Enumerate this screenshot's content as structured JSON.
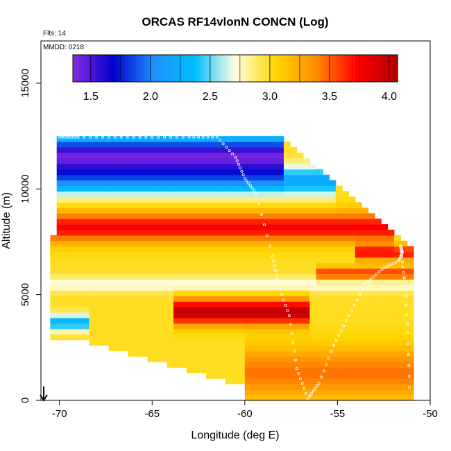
{
  "chart_data": {
    "type": "heatmap",
    "title": "ORCAS RF14vlonN CONCN (Log)",
    "notes": [
      "Flts: 14",
      "MMDD: 0218"
    ],
    "xlabel": "Longitude (deg E)",
    "ylabel": "Altitude (m)",
    "xlim": [
      -71,
      -50
    ],
    "ylim": [
      0,
      17000
    ],
    "xticks": [
      -70,
      -65,
      -60,
      -55,
      -50
    ],
    "yticks": [
      0,
      5000,
      10000,
      15000
    ],
    "colorbar": {
      "range": [
        1.35,
        4.07
      ],
      "ticks": [
        1.5,
        2.0,
        2.5,
        3.0,
        3.5,
        4.0
      ],
      "tick_labels": [
        "1.5",
        "2.0",
        "2.5",
        "3.0",
        "3.5",
        "4.0"
      ],
      "colors": [
        "#8a2be2",
        "#0000cd",
        "#1e90ff",
        "#00bfff",
        "#ffffe0",
        "#ffd700",
        "#ff8c00",
        "#ff0000",
        "#b00000"
      ]
    },
    "field": {
      "lon_range": [
        -70.5,
        -50.9
      ],
      "alt_range": [
        0,
        12500
      ],
      "background_value": 3.0,
      "layers": [
        {
          "alt": 11600,
          "width": 900,
          "value": 1.45,
          "lon_range": [
            -70.2,
            -58
          ]
        },
        {
          "alt": 10400,
          "width": 700,
          "value": 2.2,
          "lon_range": [
            -70.2,
            -55
          ]
        },
        {
          "alt": 8200,
          "width": 700,
          "value": 3.75,
          "lon_range": [
            -70.5,
            -52
          ]
        },
        {
          "alt": 7000,
          "width": 350,
          "value": 3.7,
          "lon_range": [
            -54,
            -51
          ]
        },
        {
          "alt": 6000,
          "width": 300,
          "value": 3.65,
          "lon_range": [
            -56,
            -51
          ]
        },
        {
          "alt": 5500,
          "width": 350,
          "value": 2.7,
          "lon_range": [
            -70.5,
            -51
          ]
        },
        {
          "alt": 4200,
          "width": 600,
          "value": 4.0,
          "lon_range": [
            -64,
            -56.5
          ]
        },
        {
          "alt": 3700,
          "width": 400,
          "value": 2.3,
          "lon_range": [
            -70.5,
            -68.5
          ]
        },
        {
          "alt": 1300,
          "width": 1200,
          "value": 3.45,
          "lon_range": [
            -60,
            -51
          ]
        }
      ]
    },
    "flight_track": {
      "lon": [
        -70.0,
        -69.0,
        -67.0,
        -65.0,
        -63.0,
        -61.5,
        -60.5,
        -60.0,
        -59.4,
        -58.5,
        -58.2,
        -57.6,
        -57.2,
        -56.6,
        -56.0,
        -55.2,
        -54.4,
        -53.5,
        -52.6,
        -51.7,
        -51.5,
        -51.6,
        -51.4,
        -51.2,
        -51.1
      ],
      "alt": [
        12450,
        12450,
        12450,
        12450,
        12450,
        12450,
        11500,
        10500,
        9800,
        6800,
        5500,
        4000,
        1500,
        100,
        800,
        2600,
        4000,
        5500,
        6200,
        6600,
        7000,
        7300,
        5800,
        3200,
        100
      ]
    }
  }
}
